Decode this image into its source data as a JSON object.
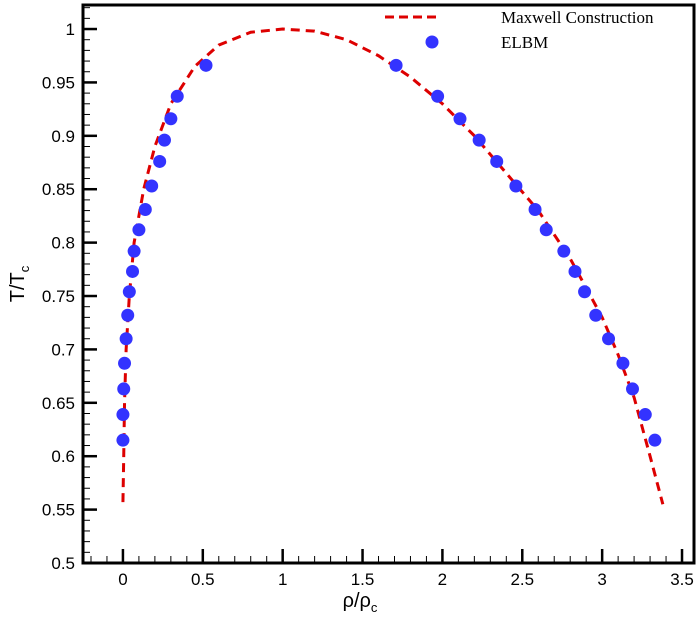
{
  "chart_data": {
    "type": "scatter",
    "xlabel": "ρ/ρ",
    "xlabel_sub": "c",
    "ylabel": "T/T",
    "ylabel_sub": "c",
    "xlim": [
      -0.25,
      3.575
    ],
    "ylim": [
      0.5,
      1.0225
    ],
    "xticks": [
      "0",
      "0.5",
      "1",
      "1.5",
      "2",
      "2.5",
      "3",
      "3.5"
    ],
    "xtick_values": [
      0,
      0.5,
      1,
      1.5,
      2,
      2.5,
      3,
      3.5
    ],
    "yticks": [
      "0.5",
      "0.55",
      "0.6",
      "0.65",
      "0.7",
      "0.75",
      "0.8",
      "0.85",
      "0.9",
      "0.95",
      "1"
    ],
    "ytick_values": [
      0.5,
      0.55,
      0.6,
      0.65,
      0.7,
      0.75,
      0.8,
      0.85,
      0.9,
      0.95,
      1
    ],
    "grid": false,
    "legend_position": "top-right",
    "series": [
      {
        "name": "Maxwell Construction",
        "style": "dashed-line",
        "color": "#dd0000",
        "x": [
          0,
          0.005,
          0.01,
          0.02,
          0.04,
          0.07,
          0.13,
          0.2,
          0.3,
          0.45,
          0.6,
          0.8,
          1.0,
          1.2,
          1.4,
          1.6,
          1.8,
          2.0,
          2.2,
          2.4,
          2.6,
          2.8,
          3.0,
          3.1,
          3.2,
          3.3,
          3.38
        ],
        "y": [
          0.557,
          0.6,
          0.65,
          0.7,
          0.75,
          0.8,
          0.85,
          0.89,
          0.93,
          0.965,
          0.985,
          0.997,
          1.0,
          0.998,
          0.99,
          0.975,
          0.955,
          0.93,
          0.9,
          0.865,
          0.83,
          0.785,
          0.73,
          0.695,
          0.655,
          0.6,
          0.555
        ]
      },
      {
        "name": "ELBM",
        "style": "markers",
        "color": "#3333ff",
        "x": [
          0,
          0,
          0.005,
          0.01,
          0.02,
          0.03,
          0.04,
          0.06,
          0.07,
          0.1,
          0.14,
          0.18,
          0.23,
          0.26,
          0.3,
          0.34,
          0.52,
          1.71,
          1.97,
          2.11,
          2.23,
          2.34,
          2.46,
          2.58,
          2.65,
          2.76,
          2.83,
          2.89,
          2.96,
          3.04,
          3.13,
          3.19,
          3.27,
          3.33
        ],
        "y": [
          0.615,
          0.639,
          0.663,
          0.687,
          0.71,
          0.732,
          0.754,
          0.773,
          0.792,
          0.812,
          0.831,
          0.853,
          0.876,
          0.896,
          0.916,
          0.937,
          0.966,
          0.966,
          0.937,
          0.916,
          0.896,
          0.876,
          0.853,
          0.831,
          0.812,
          0.792,
          0.773,
          0.754,
          0.732,
          0.71,
          0.687,
          0.663,
          0.639,
          0.615
        ]
      }
    ]
  }
}
